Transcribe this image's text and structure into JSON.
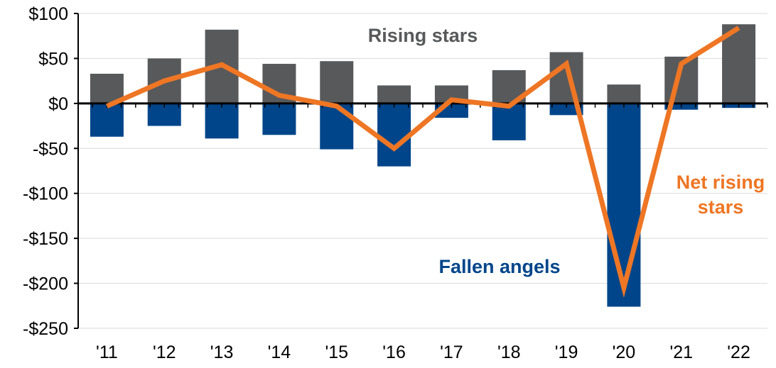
{
  "chart_data": {
    "type": "bar",
    "categories": [
      "'11",
      "'12",
      "'13",
      "'14",
      "'15",
      "'16",
      "'17",
      "'18",
      "'19",
      "'20",
      "'21",
      "'22"
    ],
    "series": [
      {
        "name": "Rising stars",
        "type": "bar",
        "color": "#58595b",
        "values": [
          33,
          50,
          82,
          44,
          47,
          20,
          20,
          37,
          57,
          21,
          52,
          88
        ]
      },
      {
        "name": "Fallen angels",
        "type": "bar",
        "color": "#00458a",
        "values": [
          -37,
          -25,
          -39,
          -35,
          -51,
          -70,
          -16,
          -41,
          -13,
          -226,
          -7,
          -5
        ]
      },
      {
        "name": "Net rising stars",
        "type": "line",
        "color": "#ee7624",
        "values": [
          -3,
          25,
          43,
          9,
          -3,
          -50,
          4,
          -3,
          44,
          -205,
          44,
          84
        ]
      }
    ],
    "ylim": [
      -250,
      100
    ],
    "yticks": [
      -250,
      -200,
      -150,
      -100,
      -50,
      0,
      50,
      100
    ],
    "ytick_labels": [
      "-$250",
      "-$200",
      "-$150",
      "-$100",
      "-$50",
      "$0",
      "$50",
      "$100"
    ],
    "grid": true,
    "annotations": [
      {
        "text": "Rising stars",
        "color": "#58595b"
      },
      {
        "text": "Fallen angels",
        "color": "#00458a"
      },
      {
        "text": "Net rising",
        "color": "#ee7624"
      },
      {
        "text": "stars",
        "color": "#ee7624"
      }
    ]
  }
}
